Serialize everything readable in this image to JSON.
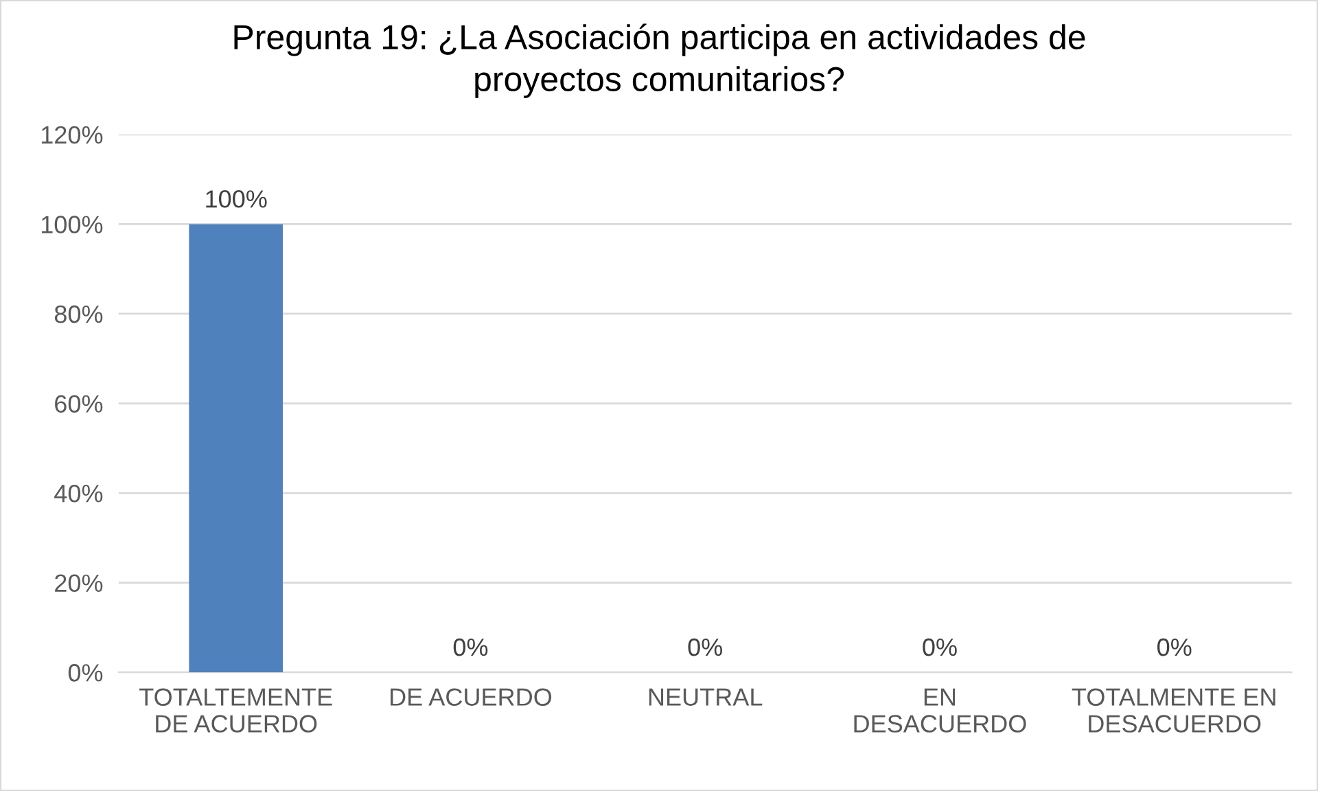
{
  "chart_data": {
    "type": "bar",
    "title": "Pregunta 19: ¿La Asociación participa en actividades de\nproyectos comunitarios?",
    "categories": [
      "TOTALTEMENTE\nDE ACUERDO",
      "DE ACUERDO",
      "NEUTRAL",
      "EN\nDESACUERDO",
      "TOTALMENTE EN\nDESACUERDO"
    ],
    "values": [
      100,
      0,
      0,
      0,
      0
    ],
    "value_labels": [
      "100%",
      "0%",
      "0%",
      "0%",
      "0%"
    ],
    "color": "#4f81bd",
    "ylim": [
      0,
      120
    ],
    "yticks": [
      {
        "value": 0,
        "label": "0%"
      },
      {
        "value": 20,
        "label": "20%"
      },
      {
        "value": 40,
        "label": "40%"
      },
      {
        "value": 60,
        "label": "60%"
      },
      {
        "value": 80,
        "label": "80%"
      },
      {
        "value": 100,
        "label": "100%"
      },
      {
        "value": 120,
        "label": "120%"
      }
    ],
    "grid": "y"
  }
}
